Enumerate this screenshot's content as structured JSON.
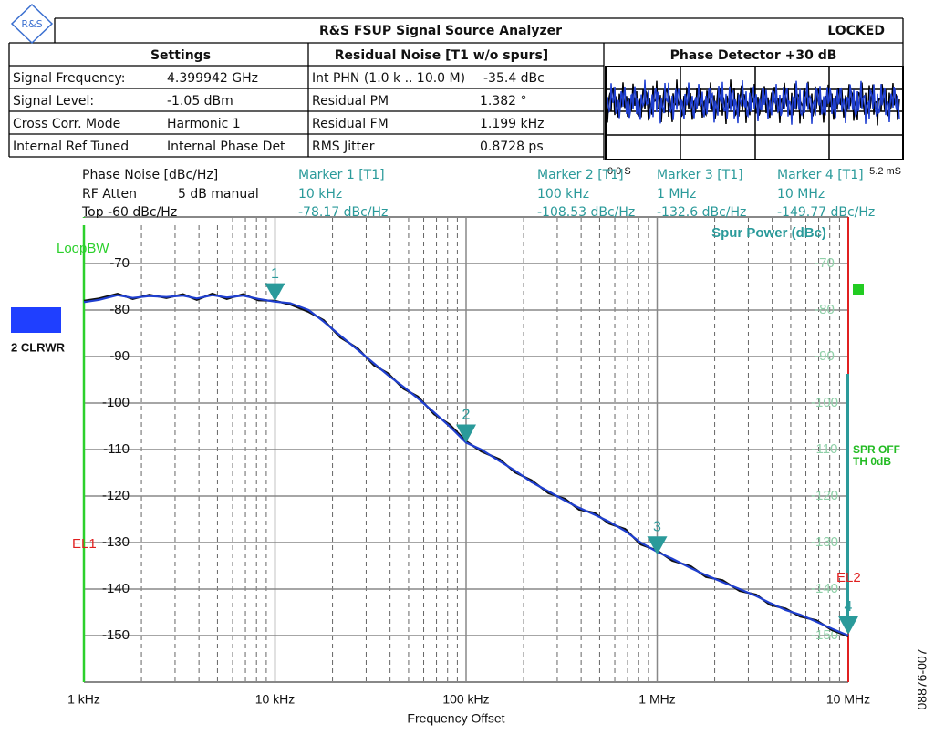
{
  "header": {
    "logo": "R&S",
    "title": "R&S FSUP Signal Source Analyzer",
    "status": "LOCKED"
  },
  "settings": {
    "title": "Settings",
    "rows": [
      [
        "Signal Frequency:",
        "4.399942 GHz"
      ],
      [
        "Signal Level:",
        "-1.05 dBm"
      ],
      [
        "Cross Corr. Mode",
        "Harmonic 1"
      ],
      [
        "Internal Ref Tuned",
        "Internal Phase Det"
      ]
    ]
  },
  "residual_noise": {
    "title": "Residual Noise [T1 w/o spurs]",
    "rows": [
      [
        "Int PHN (1.0 k .. 10.0 M)",
        "-35.4 dBc"
      ],
      [
        "Residual PM",
        "1.382 °"
      ],
      [
        "Residual FM",
        "1.199 kHz"
      ],
      [
        "RMS Jitter",
        "0.8728 ps"
      ]
    ]
  },
  "phase_detector": {
    "title": "Phase Detector +30 dB",
    "x_start": "0.0 S",
    "x_end": "5.2 mS"
  },
  "chart_data": {
    "type": "line",
    "title": "Phase Noise [dBc/Hz]",
    "rf_atten_label": "RF Atten",
    "rf_atten": "5 dB manual",
    "top": "Top -60 dBc/Hz",
    "x_label": "Frequency Offset",
    "y2_label": "Spur Power (dBc)",
    "trace_label": "2 CLRWR",
    "loop_bw": "LoopBW",
    "el1": "EL1",
    "el2": "EL2",
    "spur_status": [
      "SPR OFF",
      "TH 0dB"
    ],
    "figure_id": "08876-007",
    "log_x": true,
    "grid": true,
    "xlim": [
      1000,
      10000000
    ],
    "xticks": [
      {
        "value": 1000,
        "label": "1 kHz"
      },
      {
        "value": 10000,
        "label": "10 kHz"
      },
      {
        "value": 100000,
        "label": "100 kHz"
      },
      {
        "value": 1000000,
        "label": "1 MHz"
      },
      {
        "value": 10000000,
        "label": "10 MHz"
      }
    ],
    "ylim": [
      -160,
      -60
    ],
    "yticks": [
      -70,
      -80,
      -90,
      -100,
      -110,
      -120,
      -130,
      -140,
      -150
    ],
    "y2lim": [
      -160,
      -60
    ],
    "y2ticks": [
      -70,
      -80,
      -90,
      -100,
      -110,
      -120,
      -130,
      -140,
      -150
    ],
    "x": [
      1000,
      1200,
      1500,
      1800,
      2200,
      2700,
      3300,
      3900,
      4700,
      5600,
      6800,
      8200,
      10000,
      12000,
      15000,
      18000,
      22000,
      27000,
      33000,
      39000,
      47000,
      56000,
      68000,
      82000,
      100000,
      120000,
      150000,
      180000,
      220000,
      270000,
      330000,
      390000,
      470000,
      560000,
      680000,
      820000,
      1000000,
      1200000,
      1500000,
      1800000,
      2200000,
      2700000,
      3300000,
      3900000,
      4700000,
      5600000,
      6800000,
      8200000,
      10000000
    ],
    "series": [
      {
        "color": "#111111",
        "values": [
          -78.0,
          -77.5,
          -76.5,
          -77.6,
          -76.7,
          -77.4,
          -76.6,
          -77.8,
          -76.5,
          -77.6,
          -76.6,
          -77.9,
          -78.0,
          -78.8,
          -80.4,
          -82.2,
          -85.9,
          -88.2,
          -91.9,
          -93.6,
          -96.9,
          -98.6,
          -102.4,
          -104.6,
          -108.2,
          -110.4,
          -112.1,
          -114.9,
          -116.6,
          -119.4,
          -120.6,
          -122.9,
          -123.6,
          -125.9,
          -127.1,
          -130.4,
          -131.7,
          -133.9,
          -135.1,
          -137.4,
          -138.1,
          -140.4,
          -141.2,
          -143.4,
          -144.2,
          -145.9,
          -146.7,
          -148.8,
          -150.2
        ]
      },
      {
        "color": "#1f3fd0",
        "values": [
          -78.3,
          -77.8,
          -76.8,
          -77.4,
          -77.0,
          -77.2,
          -76.9,
          -77.5,
          -76.8,
          -77.3,
          -76.9,
          -77.6,
          -78.2,
          -78.5,
          -80.0,
          -82.5,
          -85.5,
          -88.5,
          -91.5,
          -94.0,
          -96.5,
          -99.0,
          -102.0,
          -105.0,
          -108.5,
          -110.0,
          -112.5,
          -114.5,
          -117.0,
          -119.0,
          -121.0,
          -122.5,
          -124.0,
          -125.5,
          -127.5,
          -130.0,
          -132.0,
          -133.5,
          -135.5,
          -137.0,
          -138.5,
          -140.0,
          -141.5,
          -143.0,
          -144.5,
          -145.5,
          -147.0,
          -148.5,
          -150.0
        ]
      }
    ],
    "markers": [
      {
        "label": "Marker 1 [T1]",
        "number": "1",
        "x": 10000,
        "x_label": "10 kHz",
        "y": -78.17,
        "y_label": "-78.17 dBc/Hz"
      },
      {
        "label": "Marker 2 [T1]",
        "number": "2",
        "x": 100000,
        "x_label": "100 kHz",
        "y": -108.53,
        "y_label": "-108.53 dBc/Hz"
      },
      {
        "label": "Marker 3 [T1]",
        "number": "3",
        "x": 1000000,
        "x_label": "1 MHz",
        "y": -132.6,
        "y_label": "-132.6 dBc/Hz"
      },
      {
        "label": "Marker 4 [T1]",
        "number": "4",
        "x": 10000000,
        "x_label": "10 MHz",
        "y": -149.77,
        "y_label": "-149.77 dBc/Hz"
      }
    ]
  }
}
